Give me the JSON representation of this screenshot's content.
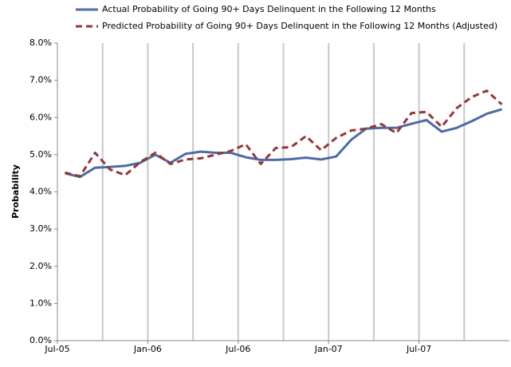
{
  "chart_data": {
    "type": "line",
    "y_label": "Probability",
    "categories": [
      "Jul-05",
      null,
      null,
      null,
      null,
      null,
      "Jan-06",
      null,
      null,
      null,
      null,
      null,
      "Jul-06",
      null,
      null,
      null,
      null,
      null,
      "Jan-07",
      null,
      null,
      null,
      null,
      null,
      "Jul-07",
      null,
      null,
      null,
      null,
      null
    ],
    "series": [
      {
        "name": "Actual Probability of Going 90+ Days Delinquent in the Following 12 Months",
        "color": "#4f6aa8",
        "dashed": false,
        "values": [
          4.5,
          4.4,
          4.65,
          4.67,
          4.7,
          4.78,
          5.0,
          4.78,
          5.02,
          5.08,
          5.05,
          5.05,
          4.93,
          4.86,
          4.86,
          4.88,
          4.92,
          4.87,
          4.95,
          5.4,
          5.7,
          5.72,
          5.72,
          5.83,
          5.93,
          5.62,
          5.72,
          5.9,
          6.1,
          6.22
        ]
      },
      {
        "name": "Predicted Probability of Going 90+ Days Delinquent in the Following 12 Months (Adjusted)",
        "color": "#953735",
        "dashed": true,
        "values": [
          4.52,
          4.42,
          5.05,
          4.6,
          4.45,
          4.8,
          5.05,
          4.75,
          4.87,
          4.9,
          5.0,
          5.1,
          5.28,
          4.75,
          5.18,
          5.2,
          5.5,
          5.12,
          5.45,
          5.65,
          5.7,
          5.82,
          5.58,
          6.12,
          6.15,
          5.75,
          6.25,
          6.55,
          6.72,
          6.35
        ]
      }
    ],
    "ylim": [
      0,
      8
    ],
    "yticks": [
      {
        "value": 0,
        "label": "0.0%"
      },
      {
        "value": 1,
        "label": "1.0%"
      },
      {
        "value": 2,
        "label": "2.0%"
      },
      {
        "value": 3,
        "label": "3.0%"
      },
      {
        "value": 4,
        "label": "4.0%"
      },
      {
        "value": 5,
        "label": "5.0%"
      },
      {
        "value": 6,
        "label": "6.0%"
      },
      {
        "value": 7,
        "label": "7.0%"
      },
      {
        "value": 8,
        "label": "8.0%"
      }
    ]
  }
}
